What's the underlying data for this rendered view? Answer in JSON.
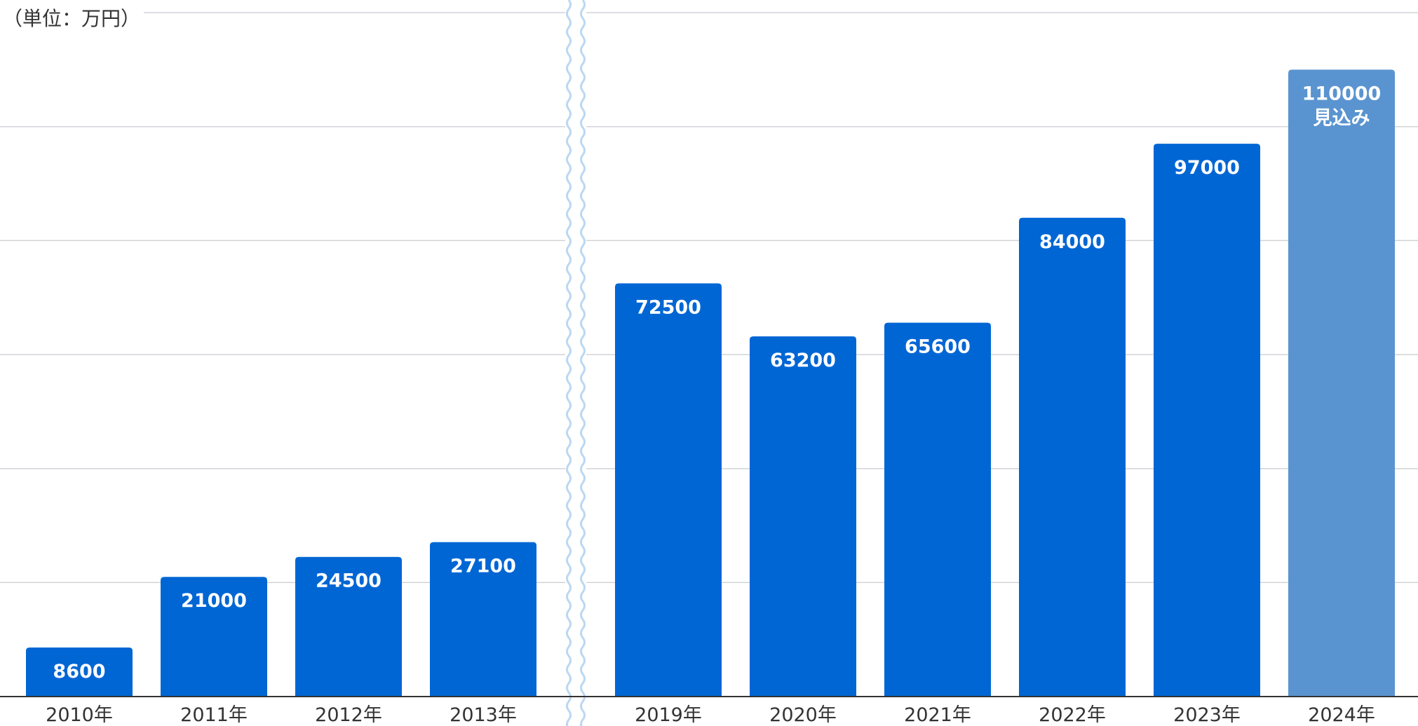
{
  "chart_data": {
    "type": "bar",
    "unit_label": "（単位：万円）",
    "categories": [
      "2010年",
      "2011年",
      "2012年",
      "2013年",
      "2019年",
      "2020年",
      "2021年",
      "2022年",
      "2023年",
      "2024年"
    ],
    "values": [
      8600,
      21000,
      24500,
      27100,
      72500,
      63200,
      65600,
      84000,
      97000,
      110000
    ],
    "data_labels": [
      "8600",
      "21000",
      "24500",
      "27100",
      "72500",
      "63200",
      "65600",
      "84000",
      "97000",
      "110000"
    ],
    "annotations": [
      {
        "category": "2024年",
        "text": "見込み"
      }
    ],
    "ylim": [
      0,
      120000
    ],
    "grid": true,
    "axis_break": "between 2013年 and 2019年",
    "colors": {
      "bar": "#0066d4",
      "bar_estimate": "#5a94d0",
      "grid": "#d2d4d8",
      "axis": "#333333",
      "break_line": "#bcd7f2"
    }
  }
}
